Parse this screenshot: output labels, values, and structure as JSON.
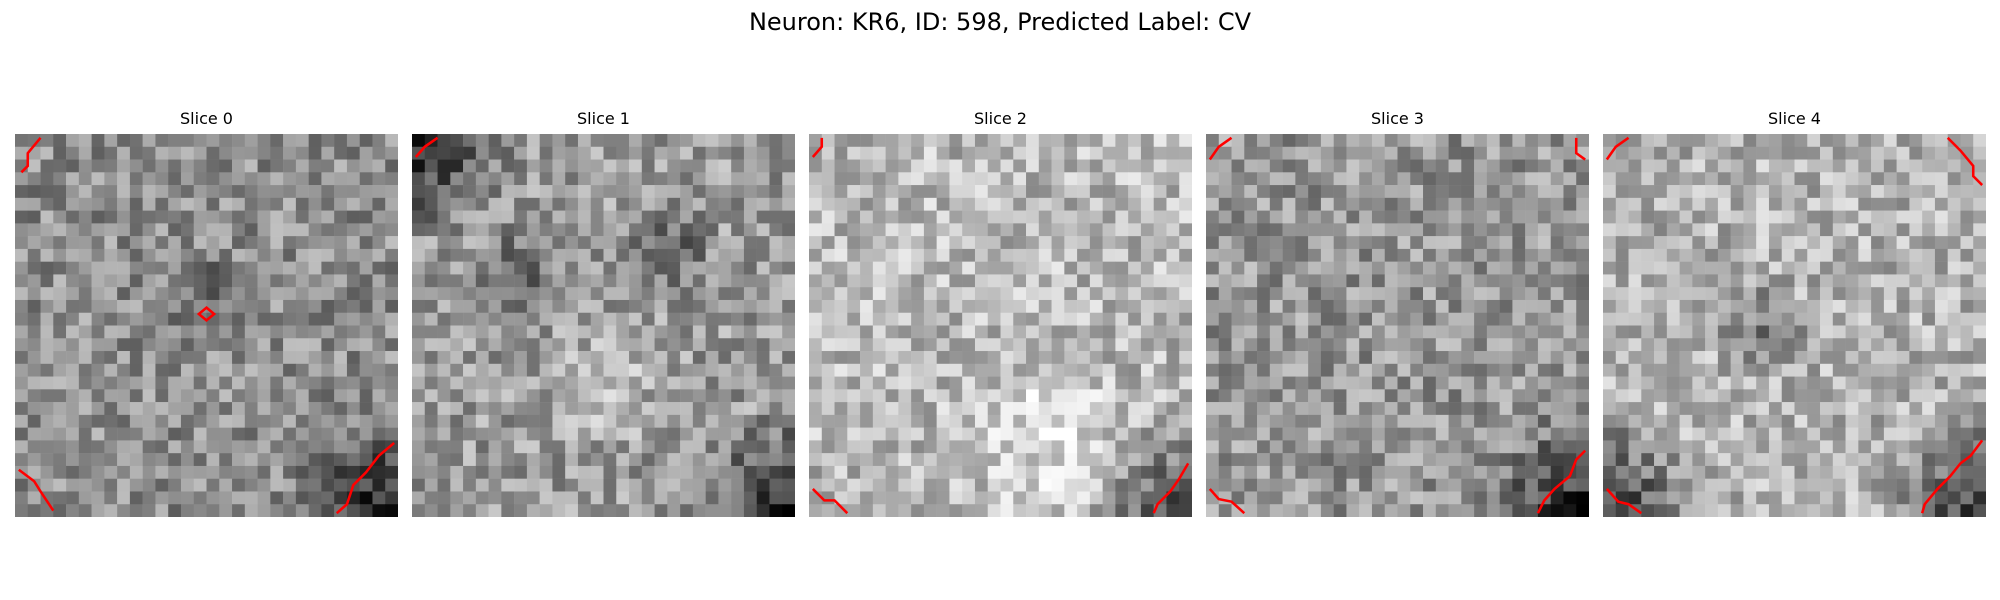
{
  "figure": {
    "title": "Neuron: KR6, ID: 598, Predicted Label: CV"
  },
  "colors": {
    "contour": "#ff0000",
    "background": "#ffffff"
  },
  "panels": [
    {
      "title": "Slice 0",
      "seed": 11,
      "base": 142,
      "dark_corners": [
        "br"
      ],
      "dark_blobs": [
        [
          0.5,
          0.42,
          0.12
        ]
      ],
      "bright_blobs": []
    },
    {
      "title": "Slice 1",
      "seed": 23,
      "base": 155,
      "dark_corners": [
        "br",
        "tl"
      ],
      "dark_blobs": [
        [
          0.28,
          0.35,
          0.14
        ],
        [
          0.68,
          0.3,
          0.14
        ]
      ],
      "bright_blobs": [
        [
          0.5,
          0.65,
          0.2
        ]
      ]
    },
    {
      "title": "Slice 2",
      "seed": 37,
      "base": 185,
      "dark_corners": [
        "br"
      ],
      "dark_blobs": [],
      "bright_blobs": [
        [
          0.62,
          0.8,
          0.25
        ]
      ]
    },
    {
      "title": "Slice 3",
      "seed": 41,
      "base": 150,
      "dark_corners": [
        "br"
      ],
      "dark_blobs": [],
      "bright_blobs": []
    },
    {
      "title": "Slice 4",
      "seed": 53,
      "base": 178,
      "dark_corners": [
        "br",
        "bl"
      ],
      "dark_blobs": [
        [
          0.42,
          0.5,
          0.14
        ]
      ],
      "bright_blobs": []
    }
  ]
}
